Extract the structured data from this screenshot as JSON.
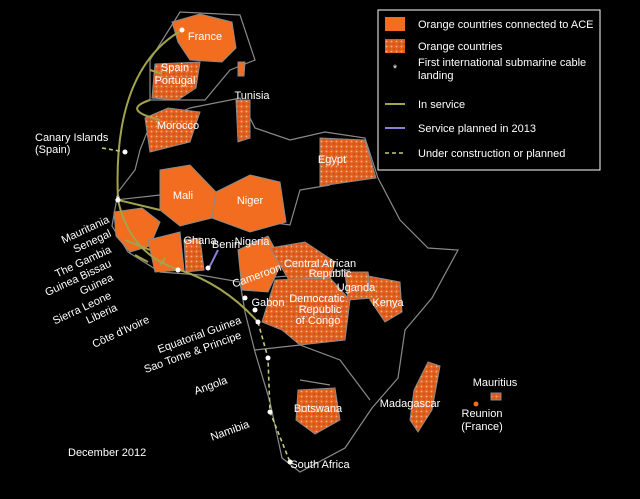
{
  "legend": [
    {
      "lines": [
        "Orange countries connected to ACE"
      ]
    },
    {
      "lines": [
        "Orange countries"
      ]
    },
    {
      "lines": [
        "First international submarine cable",
        "landing"
      ]
    },
    {
      "lines": [
        "In service"
      ]
    },
    {
      "lines": [
        "Service planned in 2013"
      ]
    },
    {
      "lines": [
        "Under construction or planned"
      ]
    }
  ],
  "labels": [
    "France",
    "Spain",
    "Portugal",
    "Tunisia",
    "Morocco",
    "Canary Islands",
    "(Spain)",
    "Egypt",
    "Mali",
    "Niger",
    "Mauritania",
    "Senegal",
    "The Gambia",
    "Guinea Bissau",
    "Guinea",
    "Sierra Leone",
    "Liberia",
    "Côte d'Ivoire",
    "Ghana",
    "Benin",
    "Nigeria",
    "Cameroon",
    "Central African",
    "Republic",
    "Uganda",
    "Kenya",
    "Democratic",
    "Republic",
    "of Congo",
    "Gabon",
    "Equatorial Guinea",
    "Sao Tome & Principe",
    "Angola",
    "Namibia",
    "Botswana",
    "South Africa",
    "Madagascar",
    "Mauritius",
    "Reunion",
    "(France)"
  ],
  "date": "December 2012"
}
